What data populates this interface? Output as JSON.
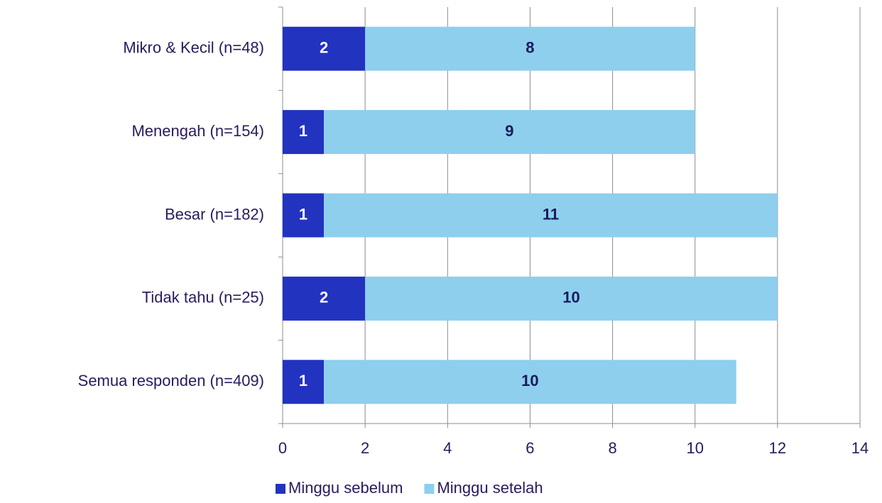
{
  "chart_data": {
    "type": "stacked_barh",
    "categories": [
      "Mikro & Kecil (n=48)",
      "Menengah (n=154)",
      "Besar (n=182)",
      "Tidak tahu (n=25)",
      "Semua responden (n=409)"
    ],
    "series": [
      {
        "name": "Minggu sebelum",
        "color": "#2233c0",
        "values": [
          2,
          1,
          1,
          2,
          1
        ]
      },
      {
        "name": "Minggu setelah",
        "color": "#8ecfee",
        "values": [
          8,
          9,
          11,
          10,
          10
        ]
      }
    ],
    "xlim": [
      0,
      14
    ],
    "xticks": [
      0,
      2,
      4,
      6,
      8,
      10,
      12,
      14
    ],
    "grid": true,
    "legend": "bottom"
  }
}
